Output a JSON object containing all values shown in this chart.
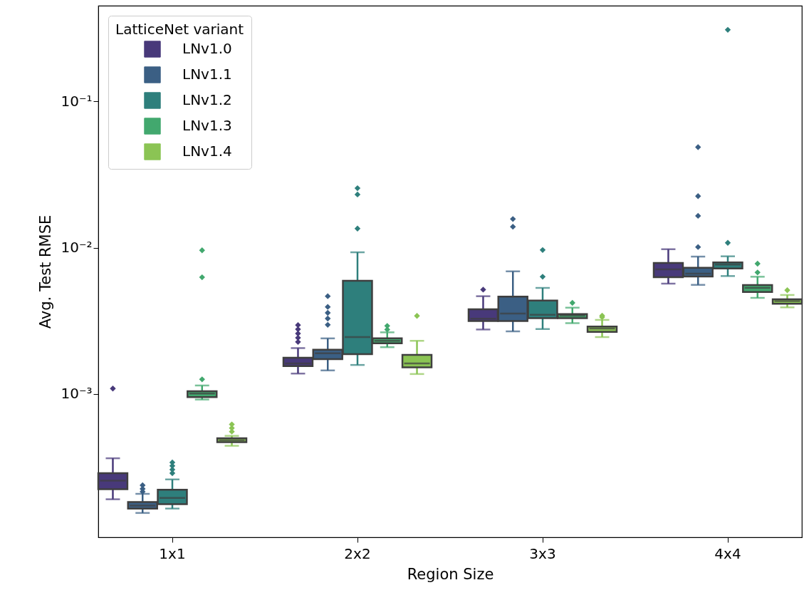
{
  "chart_data": {
    "type": "box",
    "xlabel": "Region Size",
    "ylabel": "Avg. Test RMSE",
    "legend_title": "LatticeNet variant",
    "legend": "top left",
    "log": true,
    "categories": [
      "1x1",
      "2x2",
      "3x3",
      "4x4"
    ],
    "ylim": [
      0.000105,
      0.45
    ],
    "yticks": [
      {
        "value": 0.001,
        "label": "10⁻³"
      },
      {
        "value": 0.01,
        "label": "10⁻²"
      },
      {
        "value": 0.1,
        "label": "10⁻¹"
      }
    ],
    "series": [
      {
        "name": "LNv1.0",
        "color": "#48397a",
        "boxes": [
          {
            "low": 0.000191,
            "q1": 0.000224,
            "median": 0.000256,
            "q3": 0.000288,
            "high": 0.000364,
            "outliers": [
              0.00109
            ]
          },
          {
            "low": 0.00138,
            "q1": 0.00155,
            "median": 0.00162,
            "q3": 0.00177,
            "high": 0.00206,
            "outliers": [
              0.00227,
              0.00242,
              0.00259,
              0.00277,
              0.00296
            ]
          },
          {
            "low": 0.00276,
            "q1": 0.00315,
            "median": 0.00327,
            "q3": 0.00379,
            "high": 0.00466,
            "outliers": [
              0.00517
            ]
          },
          {
            "low": 0.00568,
            "q1": 0.00628,
            "median": 0.00711,
            "q3": 0.00786,
            "high": 0.00976
          }
        ]
      },
      {
        "name": "LNv1.1",
        "color": "#3b5f84",
        "boxes": [
          {
            "low": 0.000154,
            "q1": 0.000165,
            "median": 0.000173,
            "q3": 0.000183,
            "high": 0.000208,
            "outliers": [
              0.000215,
              0.000225,
              0.000238
            ]
          },
          {
            "low": 0.00145,
            "q1": 0.00173,
            "median": 0.0019,
            "q3": 0.00201,
            "high": 0.0024,
            "outliers": [
              0.00297,
              0.00328,
              0.00359,
              0.00394,
              0.00466
            ]
          },
          {
            "low": 0.00268,
            "q1": 0.00315,
            "median": 0.00355,
            "q3": 0.00463,
            "high": 0.00689,
            "outliers": [
              0.0139,
              0.0157
            ]
          },
          {
            "low": 0.00557,
            "q1": 0.00635,
            "median": 0.00664,
            "q3": 0.00729,
            "high": 0.00869,
            "outliers": [
              0.0101,
              0.0165,
              0.0225,
              0.0486
            ]
          }
        ]
      },
      {
        "name": "LNv1.2",
        "color": "#2e7f7c",
        "boxes": [
          {
            "low": 0.000165,
            "q1": 0.000177,
            "median": 0.000195,
            "q3": 0.000222,
            "high": 0.000261,
            "outliers": [
              0.000288,
              0.000305,
              0.000323,
              0.000341
            ]
          },
          {
            "low": 0.00158,
            "q1": 0.00187,
            "median": 0.00245,
            "q3": 0.00594,
            "high": 0.0093,
            "outliers": [
              0.0135,
              0.0231,
              0.0255
            ]
          },
          {
            "low": 0.00278,
            "q1": 0.0033,
            "median": 0.00348,
            "q3": 0.00435,
            "high": 0.00531,
            "outliers": [
              0.00633,
              0.00964
            ]
          },
          {
            "low": 0.0064,
            "q1": 0.00721,
            "median": 0.00766,
            "q3": 0.00792,
            "high": 0.00873,
            "outliers": [
              0.0108,
              0.308
            ]
          }
        ]
      },
      {
        "name": "LNv1.3",
        "color": "#42a86e",
        "boxes": [
          {
            "low": 0.000917,
            "q1": 0.000953,
            "median": 0.001008,
            "q3": 0.001046,
            "high": 0.001144,
            "outliers": [
              0.00126,
              0.00628,
              0.0096
            ]
          },
          {
            "low": 0.00209,
            "q1": 0.00222,
            "median": 0.00231,
            "q3": 0.0024,
            "high": 0.00264,
            "outliers": [
              0.00276,
              0.00292
            ]
          },
          {
            "low": 0.00305,
            "q1": 0.0033,
            "median": 0.00343,
            "q3": 0.00352,
            "high": 0.00389,
            "outliers": [
              0.0042
            ]
          },
          {
            "low": 0.00454,
            "q1": 0.00498,
            "median": 0.00531,
            "q3": 0.00555,
            "high": 0.00633,
            "outliers": [
              0.00677,
              0.00778
            ]
          }
        ]
      },
      {
        "name": "LNv1.4",
        "color": "#8bc454",
        "boxes": [
          {
            "low": 0.000443,
            "q1": 0.000469,
            "median": 0.000484,
            "q3": 0.000499,
            "high": 0.000518,
            "outliers": [
              0.000554,
              0.000586,
              0.00062
            ]
          },
          {
            "low": 0.00137,
            "q1": 0.00152,
            "median": 0.00162,
            "q3": 0.00185,
            "high": 0.00231,
            "outliers": [
              0.00342
            ]
          },
          {
            "low": 0.00245,
            "q1": 0.00266,
            "median": 0.0028,
            "q3": 0.00289,
            "high": 0.00321,
            "outliers": [
              0.00335,
              0.00343
            ]
          },
          {
            "low": 0.00391,
            "q1": 0.00414,
            "median": 0.00432,
            "q3": 0.00444,
            "high": 0.00475,
            "outliers": [
              0.00512
            ]
          }
        ]
      }
    ]
  }
}
